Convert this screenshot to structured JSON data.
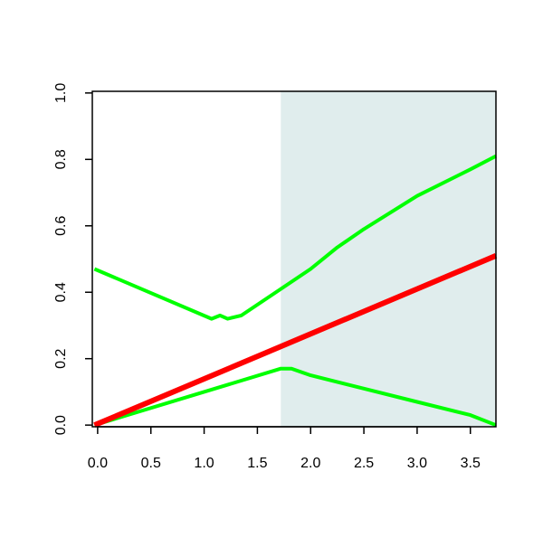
{
  "chart_data": {
    "type": "line",
    "xlim": [
      -0.05,
      3.74
    ],
    "ylim": [
      -0.005,
      1.005
    ],
    "xticks": [
      {
        "value": 0,
        "label": "0.0"
      },
      {
        "value": 0.5,
        "label": "0.5"
      },
      {
        "value": 1,
        "label": "1.0"
      },
      {
        "value": 1.5,
        "label": "1.5"
      },
      {
        "value": 2,
        "label": "2.0"
      },
      {
        "value": 2.5,
        "label": "2.5"
      },
      {
        "value": 3,
        "label": "3.0"
      },
      {
        "value": 3.5,
        "label": "3.5"
      }
    ],
    "yticks": [
      {
        "value": 0,
        "label": "0.0"
      },
      {
        "value": 0.2,
        "label": "0.2"
      },
      {
        "value": 0.4,
        "label": "0.4"
      },
      {
        "value": 0.6,
        "label": "0.6"
      },
      {
        "value": 0.8,
        "label": "0.8"
      },
      {
        "value": 1,
        "label": "1.0"
      }
    ],
    "shaded_xmin": 1.72,
    "shade_color": "#e0eded",
    "series": [
      {
        "color": "#00ff00",
        "x": [
          -0.03,
          1.07,
          1.15,
          1.22,
          1.35,
          1.72,
          2.0,
          2.25,
          2.5,
          3.0,
          3.5,
          3.74
        ],
        "values": [
          0.47,
          0.32,
          0.33,
          0.32,
          0.33,
          0.41,
          0.47,
          0.535,
          0.59,
          0.69,
          0.77,
          0.81
        ]
      },
      {
        "color": "#00ff00",
        "x": [
          -0.03,
          1.72,
          1.82,
          2.0,
          2.5,
          3.0,
          3.5,
          3.74
        ],
        "values": [
          0.0,
          0.17,
          0.17,
          0.15,
          0.11,
          0.07,
          0.03,
          0.0
        ]
      },
      {
        "color": "#ff0000",
        "x": [
          -0.03,
          3.74
        ],
        "values": [
          0.0,
          0.51
        ]
      }
    ]
  }
}
